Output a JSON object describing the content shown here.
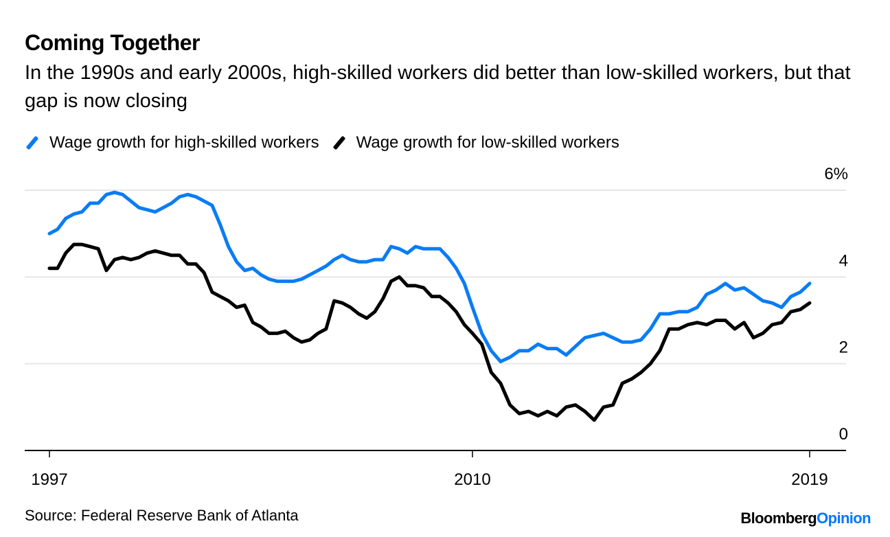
{
  "header": {
    "title": "Coming Together",
    "subtitle": "In the 1990s and early 2000s, high-skilled workers did better than low-skilled workers, but that gap is now closing"
  },
  "legend": [
    {
      "label": "Wage growth for high-skilled workers",
      "color": "#0a7cf5"
    },
    {
      "label": "Wage growth for low-skilled workers",
      "color": "#000000"
    }
  ],
  "footer": {
    "source": "Source: Federal Reserve Bank of Atlanta",
    "logo_brand": "Bloomberg",
    "logo_section": "Opinion"
  },
  "chart_data": {
    "type": "line",
    "title": "Coming Together",
    "xlabel": "",
    "ylabel": "",
    "x_start": 1997,
    "x_step": 0.25,
    "xlim": [
      1997,
      2019
    ],
    "ylim": [
      0,
      6
    ],
    "x_ticks": [
      {
        "value": 1997,
        "label": "1997"
      },
      {
        "value": 2010,
        "label": "2010"
      },
      {
        "value": 2019,
        "label": "2019"
      }
    ],
    "y_ticks": [
      {
        "value": 6,
        "label": "6%"
      },
      {
        "value": 4,
        "label": "4"
      },
      {
        "value": 2,
        "label": "2"
      },
      {
        "value": 0,
        "label": "0"
      }
    ],
    "grid": true,
    "legend_position": "top-left",
    "series": [
      {
        "name": "Wage growth for high-skilled workers",
        "color": "#0a7cf5",
        "values": [
          5.0,
          5.1,
          5.35,
          5.45,
          5.5,
          5.7,
          5.7,
          5.9,
          5.95,
          5.9,
          5.75,
          5.6,
          5.55,
          5.5,
          5.6,
          5.7,
          5.85,
          5.9,
          5.85,
          5.75,
          5.65,
          5.2,
          4.7,
          4.35,
          4.15,
          4.2,
          4.05,
          3.95,
          3.9,
          3.9,
          3.9,
          3.95,
          4.05,
          4.15,
          4.25,
          4.4,
          4.5,
          4.4,
          4.35,
          4.35,
          4.4,
          4.4,
          4.7,
          4.65,
          4.55,
          4.7,
          4.65,
          4.65,
          4.65,
          4.45,
          4.2,
          3.85,
          3.3,
          2.7,
          2.3,
          2.05,
          2.15,
          2.3,
          2.3,
          2.45,
          2.35,
          2.35,
          2.2,
          2.4,
          2.6,
          2.65,
          2.7,
          2.6,
          2.5,
          2.5,
          2.55,
          2.8,
          3.15,
          3.15,
          3.2,
          3.2,
          3.3,
          3.6,
          3.7,
          3.85,
          3.7,
          3.75,
          3.6,
          3.45,
          3.4,
          3.3,
          3.55,
          3.65,
          3.85
        ]
      },
      {
        "name": "Wage growth for low-skilled workers",
        "color": "#000000",
        "values": [
          4.2,
          4.2,
          4.55,
          4.75,
          4.75,
          4.7,
          4.65,
          4.15,
          4.4,
          4.45,
          4.4,
          4.45,
          4.55,
          4.6,
          4.55,
          4.5,
          4.5,
          4.3,
          4.3,
          4.1,
          3.65,
          3.55,
          3.45,
          3.3,
          3.35,
          2.95,
          2.85,
          2.7,
          2.7,
          2.75,
          2.6,
          2.5,
          2.55,
          2.7,
          2.8,
          3.45,
          3.4,
          3.3,
          3.15,
          3.05,
          3.2,
          3.5,
          3.9,
          4.0,
          3.8,
          3.8,
          3.75,
          3.55,
          3.55,
          3.4,
          3.2,
          2.9,
          2.7,
          2.45,
          1.8,
          1.55,
          1.05,
          0.85,
          0.9,
          0.8,
          0.9,
          0.8,
          1.0,
          1.05,
          0.9,
          0.7,
          1.0,
          1.05,
          1.55,
          1.65,
          1.8,
          2.0,
          2.3,
          2.8,
          2.8,
          2.9,
          2.95,
          2.9,
          3.0,
          3.0,
          2.8,
          2.95,
          2.6,
          2.7,
          2.9,
          2.95,
          3.2,
          3.25,
          3.4
        ]
      }
    ]
  }
}
